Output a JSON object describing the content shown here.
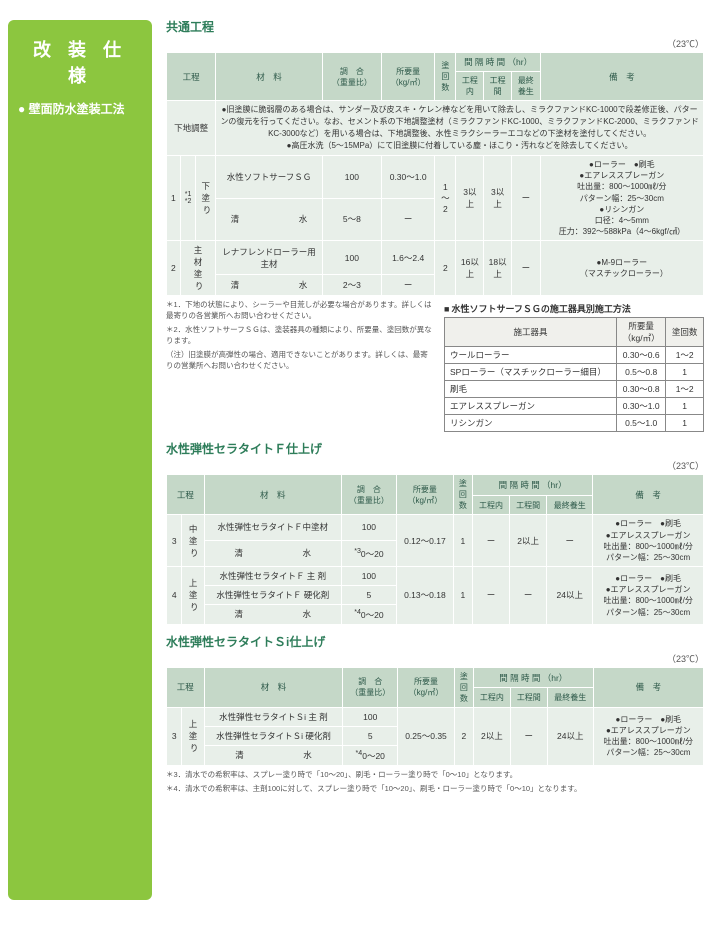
{
  "sidebar": {
    "title": "改 装 仕 様",
    "subtitle": "● 壁面防水塗装工法"
  },
  "temp_note": "（23℃）",
  "sections": {
    "common": {
      "title": "共通工程",
      "prep_text": "●旧塗膜に脆弱層のある場合は、サンダー及び皮スキ・ケレン棒などを用いて除去し、ミラクファンドKC-1000で段差修正後、パターンの復元を行ってください。なお、セメント系の下地調整塗材（ミラクファンドKC-1000、ミラクファンドKC-2000、ミラクファンドKC-3000など）を用いる場合は、下地調整後、水性ミラクシーラーエコなどの下塗材を塗付してください。\n●高圧水洗（5～15MPa）にて旧塗膜に付着している塵・ほこり・汚れなどを除去してください。"
    },
    "f_finish": {
      "title": "水性弾性セラタイトＦ仕上げ"
    },
    "si_finish": {
      "title": "水性弾性セラタイトＳi仕上げ"
    }
  },
  "headers": {
    "process": "工程",
    "material": "材　料",
    "ratio": "調　合\n（重量比）",
    "amount": "所要量\n（kg/㎡）",
    "count": "塗\n回\n数",
    "interval": "間 隔 時 間 （hr）",
    "int_in": "工程内",
    "int_between": "工程間",
    "int_cure": "最終養生",
    "remark": "備　考",
    "tool_name": "施工器具",
    "tool_amt": "所要量\n（kg/㎡）",
    "tool_cnt": "塗回数"
  },
  "rows": {
    "prep_label": "下地調整",
    "r1": {
      "no": "1",
      "step": "下\n塗\n り",
      "star": "*1\n*2",
      "m1": "水性ソフトサーフＳＧ",
      "v1a": "100",
      "v1b": "0.30～1.0",
      "m2": "清　　　　　　　水",
      "v2a": "5～8",
      "v2b": "ー",
      "cnt": "1\n～\n2",
      "in": "3以上",
      "bw": "3以上",
      "cure": "ー",
      "remark": "●ローラー　●刷毛\n●エアレススプレーガン\n吐出量：800～1000㎖/分\nパターン幅：25～30cm\n●リシンガン\n口径：4～5mm\n圧力：392～588kPa（4～6kgf/㎠）"
    },
    "r2": {
      "no": "2",
      "step": "主\n材\n塗\n り",
      "m1": "レナフレンドローラー用主材",
      "v1a": "100",
      "v1b": "1.6～2.4",
      "m2": "清　　　　　　　水",
      "v2a": "2～3",
      "v2b": "ー",
      "cnt": "2",
      "in": "16以上",
      "bw": "18以上",
      "cure": "ー",
      "remark": "●M-9ローラー\n　（マスチックローラー）"
    },
    "r3": {
      "no": "3",
      "step": "中\n塗\n り",
      "m1": "水性弾性セラタイトＦ中塗材",
      "v1a": "100",
      "v1b": "0.12～0.17",
      "m2": "清　　　　　　　水",
      "v2a_pre": "*3",
      "v2a": "0～20",
      "v2b": "ー",
      "cnt": "1",
      "in": "ー",
      "bw": "2以上",
      "cure": "ー",
      "remark": "●ローラー　●刷毛\n●エアレススプレーガン\n吐出量：800～1000㎖/分\nパターン幅：25～30cm"
    },
    "r4": {
      "no": "4",
      "step": "上\n塗\n り",
      "m1": "水性弾性セラタイトＦ 主 剤",
      "v1a": "100",
      "v1b": "0.13～0.18",
      "m2": "水性弾性セラタイトＦ 硬化剤",
      "v2a": "5",
      "m3": "清　　　　　　　水",
      "v3a_pre": "*4",
      "v3a": "0～20",
      "v3b": "ー",
      "cnt": "1",
      "in": "ー",
      "bw": "ー",
      "cure": "24以上",
      "remark": "●ローラー　●刷毛\n●エアレススプレーガン\n吐出量：800～1000㎖/分\nパターン幅：25～30cm"
    },
    "r5": {
      "no": "3",
      "step": "上\n塗\n り",
      "m1": "水性弾性セラタイトＳi 主 剤",
      "v1a": "100",
      "v1b": "0.25～0.35",
      "m2": "水性弾性セラタイトＳi 硬化剤",
      "v2a": "5",
      "m3": "清　　　　　　　水",
      "v3a_pre": "*4",
      "v3a": "0～20",
      "v3b": "ー",
      "cnt": "2",
      "in": "2以上",
      "bw": "ー",
      "cure": "24以上",
      "remark": "●ローラー　●刷毛\n●エアレススプレーガン\n吐出量：800～1000㎖/分\nパターン幅：25～30cm"
    }
  },
  "notes": {
    "n1": "＊1．下地の状態により、シーラーや目荒しが必要な場合があります。詳しくは最寄りの各営業所へお問い合わせください。",
    "n2": "＊2．水性ソフトサーフＳＧは、塗装器具の種類により、所要量、塗回数が異なります。",
    "n2b": "（注）旧塗膜が高弾性の場合、適用できないことがあります。詳しくは、最寄りの営業所へお問い合わせください。",
    "n3": "＊3．清水での希釈率は、スプレー塗り時で「10～20」、刷毛・ローラー塗り時で「0～10」となります。",
    "n4": "＊4．清水での希釈率は、主剤100に対して、スプレー塗り時で「10～20」、刷毛・ローラー塗り時で「0～10」となります。"
  },
  "tool_table": {
    "title": "水性ソフトサーフＳＧの施工器具別施工方法",
    "rows": [
      {
        "name": "ウールローラー",
        "amt": "0.30～0.6",
        "cnt": "1～2"
      },
      {
        "name": "SPローラー（マスチックローラー細目）",
        "amt": "0.5～0.8",
        "cnt": "1"
      },
      {
        "name": "刷毛",
        "amt": "0.30～0.8",
        "cnt": "1～2"
      },
      {
        "name": "エアレススプレーガン",
        "amt": "0.30～1.0",
        "cnt": "1"
      },
      {
        "name": "リシンガン",
        "amt": "0.5～1.0",
        "cnt": "1"
      }
    ]
  }
}
